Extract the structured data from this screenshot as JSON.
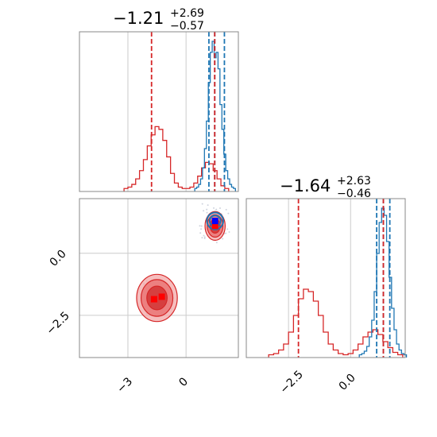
{
  "chart_data": [
    {
      "panel": "marginal-x",
      "type": "histogram",
      "title": {
        "median": "−1.21",
        "plus": "+2.69",
        "minus": "−0.57"
      },
      "xlim": [
        -5.5,
        2.7
      ],
      "grid": true,
      "series": [
        {
          "color": "#d62728",
          "bins": [
            -3.1,
            -2.9,
            -2.7,
            -2.5,
            -2.3,
            -2.1,
            -1.9,
            -1.7,
            -1.5,
            -1.3,
            -1.1,
            -0.9,
            -0.7,
            -0.5,
            -0.3,
            -0.1,
            0.1,
            0.3,
            0.5,
            0.7,
            0.9,
            1.1,
            1.3,
            1.5,
            1.7,
            1.9,
            2.1
          ],
          "counts": [
            1,
            2,
            4,
            8,
            14,
            22,
            32,
            40,
            46,
            44,
            36,
            24,
            12,
            5,
            2,
            1,
            1,
            2,
            5,
            10,
            16,
            20,
            19,
            14,
            8,
            3,
            1
          ],
          "quantiles": [
            -1.78
          ]
        },
        {
          "color": "#1f77b4",
          "bins": [
            0.5,
            0.6,
            0.7,
            0.8,
            0.9,
            1.0,
            1.1,
            1.2,
            1.3,
            1.4,
            1.5,
            1.6,
            1.7,
            1.8,
            1.9,
            2.0,
            2.1,
            2.2,
            2.3,
            2.4,
            2.5
          ],
          "counts": [
            1,
            2,
            4,
            8,
            16,
            30,
            50,
            78,
            100,
            108,
            96,
            100,
            88,
            62,
            44,
            26,
            14,
            8,
            4,
            2,
            1
          ],
          "quantiles": [
            1.18,
            1.48,
            1.98
          ]
        }
      ],
      "median_line": 1.48
    },
    {
      "panel": "joint",
      "type": "scatter",
      "xlim": [
        -5.5,
        2.7
      ],
      "ylim": [
        -4.2,
        2.2
      ],
      "grid": true,
      "series": [
        {
          "color": "#d62728",
          "name": "",
          "peaks": [
            {
              "x": -1.5,
              "y": -1.8
            },
            {
              "x": 1.5,
              "y": 1.1
            }
          ],
          "markers": [
            {
              "x": -1.25,
              "y": -1.75
            },
            {
              "x": -1.65,
              "y": -1.85
            },
            {
              "x": 1.5,
              "y": 1.1
            }
          ]
        },
        {
          "color": "#1f77b4",
          "name": "",
          "peaks": [
            {
              "x": 1.5,
              "y": 1.3
            }
          ],
          "markers": [
            {
              "x": 1.5,
              "y": 1.3
            }
          ]
        }
      ],
      "xticks": [
        "−3",
        "0"
      ],
      "yticks": [
        "0.0",
        "−2.5"
      ],
      "xtick_values": [
        -3,
        0
      ],
      "ytick_values": [
        0,
        -2.5
      ]
    },
    {
      "panel": "marginal-y",
      "type": "histogram",
      "title": {
        "median": "−1.64",
        "plus": "+2.63",
        "minus": "−0.46"
      },
      "xlim": [
        -4.2,
        2.2
      ],
      "grid": true,
      "series": [
        {
          "color": "#d62728",
          "bins": [
            -3.2,
            -3.0,
            -2.8,
            -2.6,
            -2.4,
            -2.2,
            -2.0,
            -1.8,
            -1.6,
            -1.4,
            -1.2,
            -1.0,
            -0.8,
            -0.6,
            -0.4,
            -0.2,
            0.0,
            0.2,
            0.4,
            0.6,
            0.8,
            1.0,
            1.2,
            1.4,
            1.6,
            1.8,
            2.0
          ],
          "counts": [
            1,
            2,
            5,
            10,
            20,
            34,
            48,
            56,
            54,
            46,
            34,
            20,
            10,
            5,
            2,
            1,
            2,
            5,
            10,
            16,
            20,
            22,
            18,
            12,
            7,
            3,
            1
          ],
          "quantiles": [
            -2.1
          ]
        },
        {
          "color": "#1f77b4",
          "bins": [
            0.4,
            0.5,
            0.6,
            0.7,
            0.8,
            0.9,
            1.0,
            1.1,
            1.2,
            1.3,
            1.4,
            1.5,
            1.6,
            1.7,
            1.8,
            1.9,
            2.0,
            2.1,
            2.2
          ],
          "counts": [
            1,
            2,
            4,
            8,
            16,
            30,
            54,
            86,
            112,
            124,
            118,
            96,
            66,
            40,
            22,
            10,
            5,
            2,
            1
          ],
          "quantiles": [
            1.05,
            1.32,
            1.58
          ]
        }
      ],
      "median_line": 1.32,
      "xticks": [
        "−2.5",
        "0.0"
      ],
      "xtick_values": [
        -2.5,
        0
      ]
    }
  ]
}
